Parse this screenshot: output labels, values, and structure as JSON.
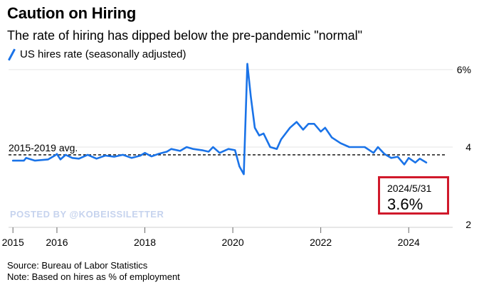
{
  "header": {
    "title": "Caution on Hiring",
    "subtitle": "The rate of hiring has dipped below the pre-pandemic \"normal\""
  },
  "legend": {
    "label": "US hires rate (seasonally adjusted)"
  },
  "watermark": "POSTED BY @KOBEISSILETTER",
  "callout": {
    "date": "2024/5/31",
    "value": "3.6%"
  },
  "footer": {
    "source": "Source: Bureau of Labor Statistics",
    "note": "Note: Based on hires as % of employment"
  },
  "colors": {
    "line": "#1a73e8",
    "callout_border": "#d0192b",
    "grid": "#e6e6e6"
  },
  "chart_data": {
    "type": "line",
    "title": "Caution on Hiring",
    "subtitle": "The rate of hiring has dipped below the pre-pandemic \"normal\"",
    "xlabel": "",
    "ylabel": "",
    "ylim": [
      2,
      6
    ],
    "xlim": [
      2014.9,
      2025.0
    ],
    "yticks": [
      {
        "value": 2,
        "label": "2"
      },
      {
        "value": 4,
        "label": "4"
      },
      {
        "value": 6,
        "label": "6%"
      }
    ],
    "xticks": [
      {
        "value": 2015,
        "label": "2015"
      },
      {
        "value": 2016,
        "label": "2016"
      },
      {
        "value": 2018,
        "label": "2018"
      },
      {
        "value": 2020,
        "label": "2020"
      },
      {
        "value": 2022,
        "label": "2022"
      },
      {
        "value": 2024,
        "label": "2024"
      }
    ],
    "grid": true,
    "reference_line": {
      "label": "2015-2019 avg.",
      "value": 3.8
    },
    "series": [
      {
        "name": "US hires rate (seasonally adjusted)",
        "x": [
          2015.0,
          2015.25,
          2015.3,
          2015.5,
          2015.8,
          2015.95,
          2016.0,
          2016.08,
          2016.2,
          2016.35,
          2016.5,
          2016.7,
          2016.9,
          2017.1,
          2017.3,
          2017.5,
          2017.7,
          2017.9,
          2018.0,
          2018.15,
          2018.3,
          2018.5,
          2018.6,
          2018.8,
          2018.95,
          2019.1,
          2019.3,
          2019.45,
          2019.55,
          2019.7,
          2019.9,
          2020.05,
          2020.15,
          2020.25,
          2020.33,
          2020.41,
          2020.5,
          2020.6,
          2020.7,
          2020.85,
          2021.0,
          2021.1,
          2021.3,
          2021.45,
          2021.6,
          2021.72,
          2021.85,
          2022.0,
          2022.1,
          2022.25,
          2022.45,
          2022.65,
          2022.8,
          2023.0,
          2023.2,
          2023.3,
          2023.45,
          2023.6,
          2023.75,
          2023.9,
          2024.0,
          2024.15,
          2024.25,
          2024.4
        ],
        "y": [
          3.65,
          3.65,
          3.72,
          3.65,
          3.68,
          3.78,
          3.82,
          3.68,
          3.8,
          3.72,
          3.7,
          3.8,
          3.7,
          3.78,
          3.75,
          3.8,
          3.72,
          3.78,
          3.85,
          3.76,
          3.82,
          3.88,
          3.95,
          3.9,
          4.0,
          3.95,
          3.92,
          3.88,
          4.0,
          3.85,
          3.95,
          3.92,
          3.5,
          3.3,
          6.15,
          5.3,
          4.5,
          4.3,
          4.35,
          4.0,
          3.95,
          4.2,
          4.5,
          4.65,
          4.45,
          4.6,
          4.6,
          4.4,
          4.5,
          4.25,
          4.1,
          4.0,
          4.0,
          4.0,
          3.85,
          4.0,
          3.82,
          3.72,
          3.75,
          3.55,
          3.72,
          3.6,
          3.7,
          3.6
        ]
      }
    ]
  }
}
